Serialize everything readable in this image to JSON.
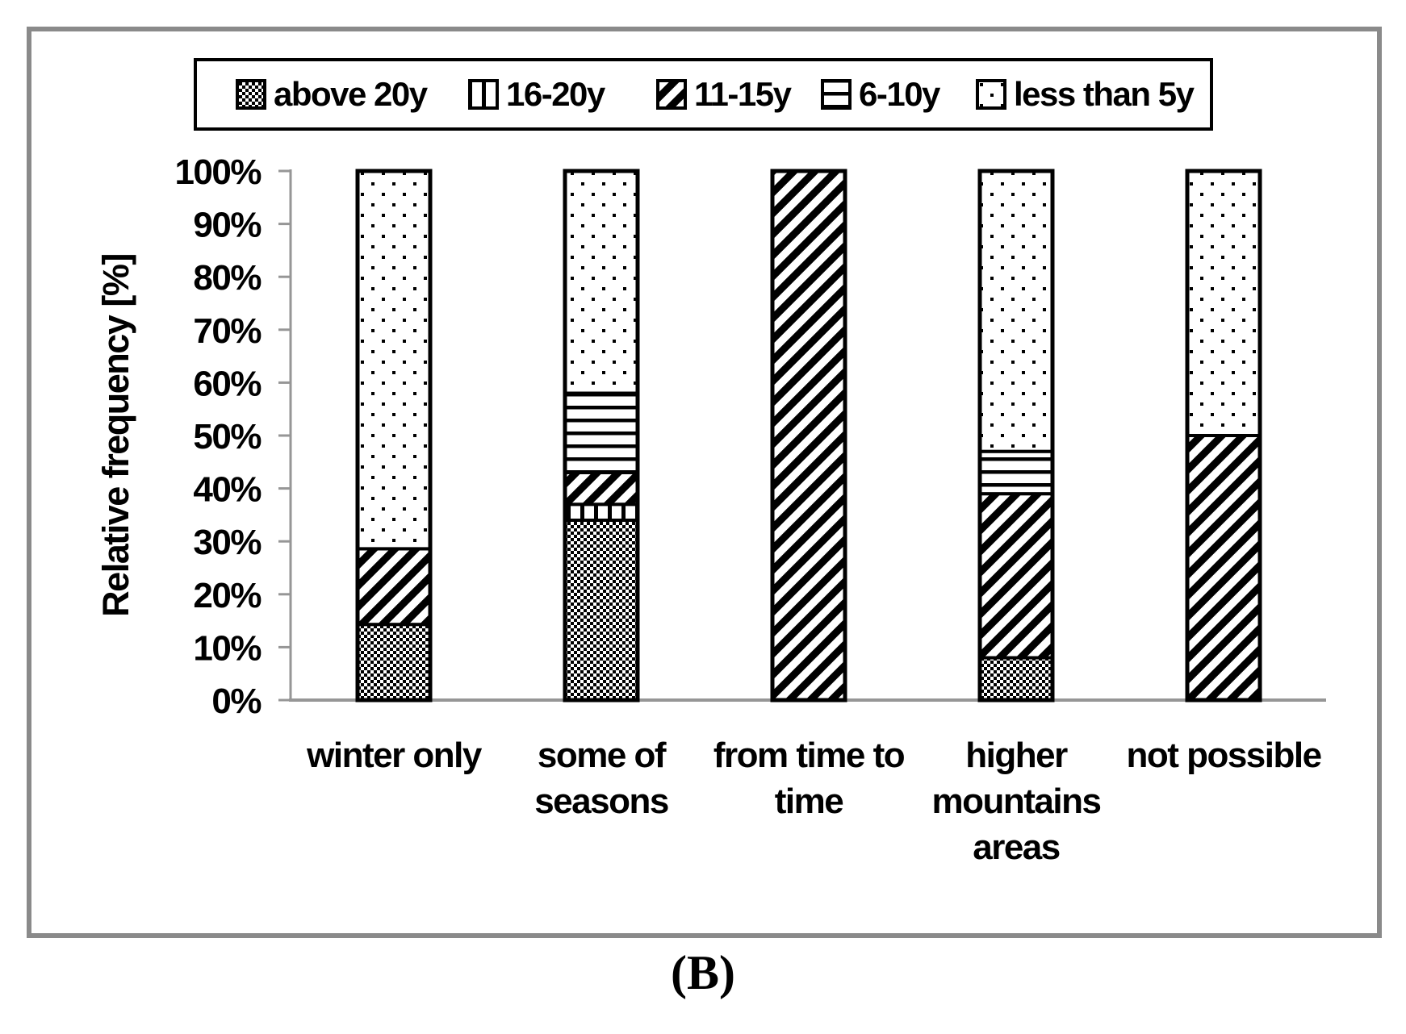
{
  "figure": {
    "caption": "(B)"
  },
  "chart_data": {
    "type": "bar",
    "stacked": true,
    "orientation": "vertical",
    "title": "",
    "xlabel": "",
    "ylabel": "Relative frequency [%]",
    "ylim": [
      0,
      100
    ],
    "ytick_step": 10,
    "ytick_labels": [
      "0%",
      "10%",
      "20%",
      "30%",
      "40%",
      "50%",
      "60%",
      "70%",
      "80%",
      "90%",
      "100%"
    ],
    "grid": false,
    "legend_position": "top",
    "categories": [
      "winter only",
      "some of seasons",
      "from time to time",
      "higher mountains areas",
      "not possible"
    ],
    "categories_multiline": [
      [
        "winter only"
      ],
      [
        "some of",
        "seasons"
      ],
      [
        "from time to",
        "time"
      ],
      [
        "higher",
        "mountains",
        "areas"
      ],
      [
        "not possible"
      ]
    ],
    "series": [
      {
        "name": "above 20y",
        "pattern": "dense-checker",
        "values": [
          14.3,
          34,
          0,
          8,
          0
        ]
      },
      {
        "name": "16-20y",
        "pattern": "vertical-lines",
        "values": [
          0,
          3,
          0,
          0,
          0
        ]
      },
      {
        "name": "11-15y",
        "pattern": "diagonal-stripes",
        "values": [
          14.3,
          6,
          100,
          31,
          50
        ]
      },
      {
        "name": "6-10y",
        "pattern": "horizontal-lines",
        "values": [
          0,
          15,
          0,
          8,
          0
        ]
      },
      {
        "name": "less than 5y",
        "pattern": "sparse-dots",
        "values": [
          71.4,
          42,
          0,
          53,
          50
        ]
      }
    ],
    "colors": {
      "foreground": "#000000",
      "background": "#ffffff",
      "axis": "#969696",
      "frame_border": "#8a8a8a"
    }
  }
}
